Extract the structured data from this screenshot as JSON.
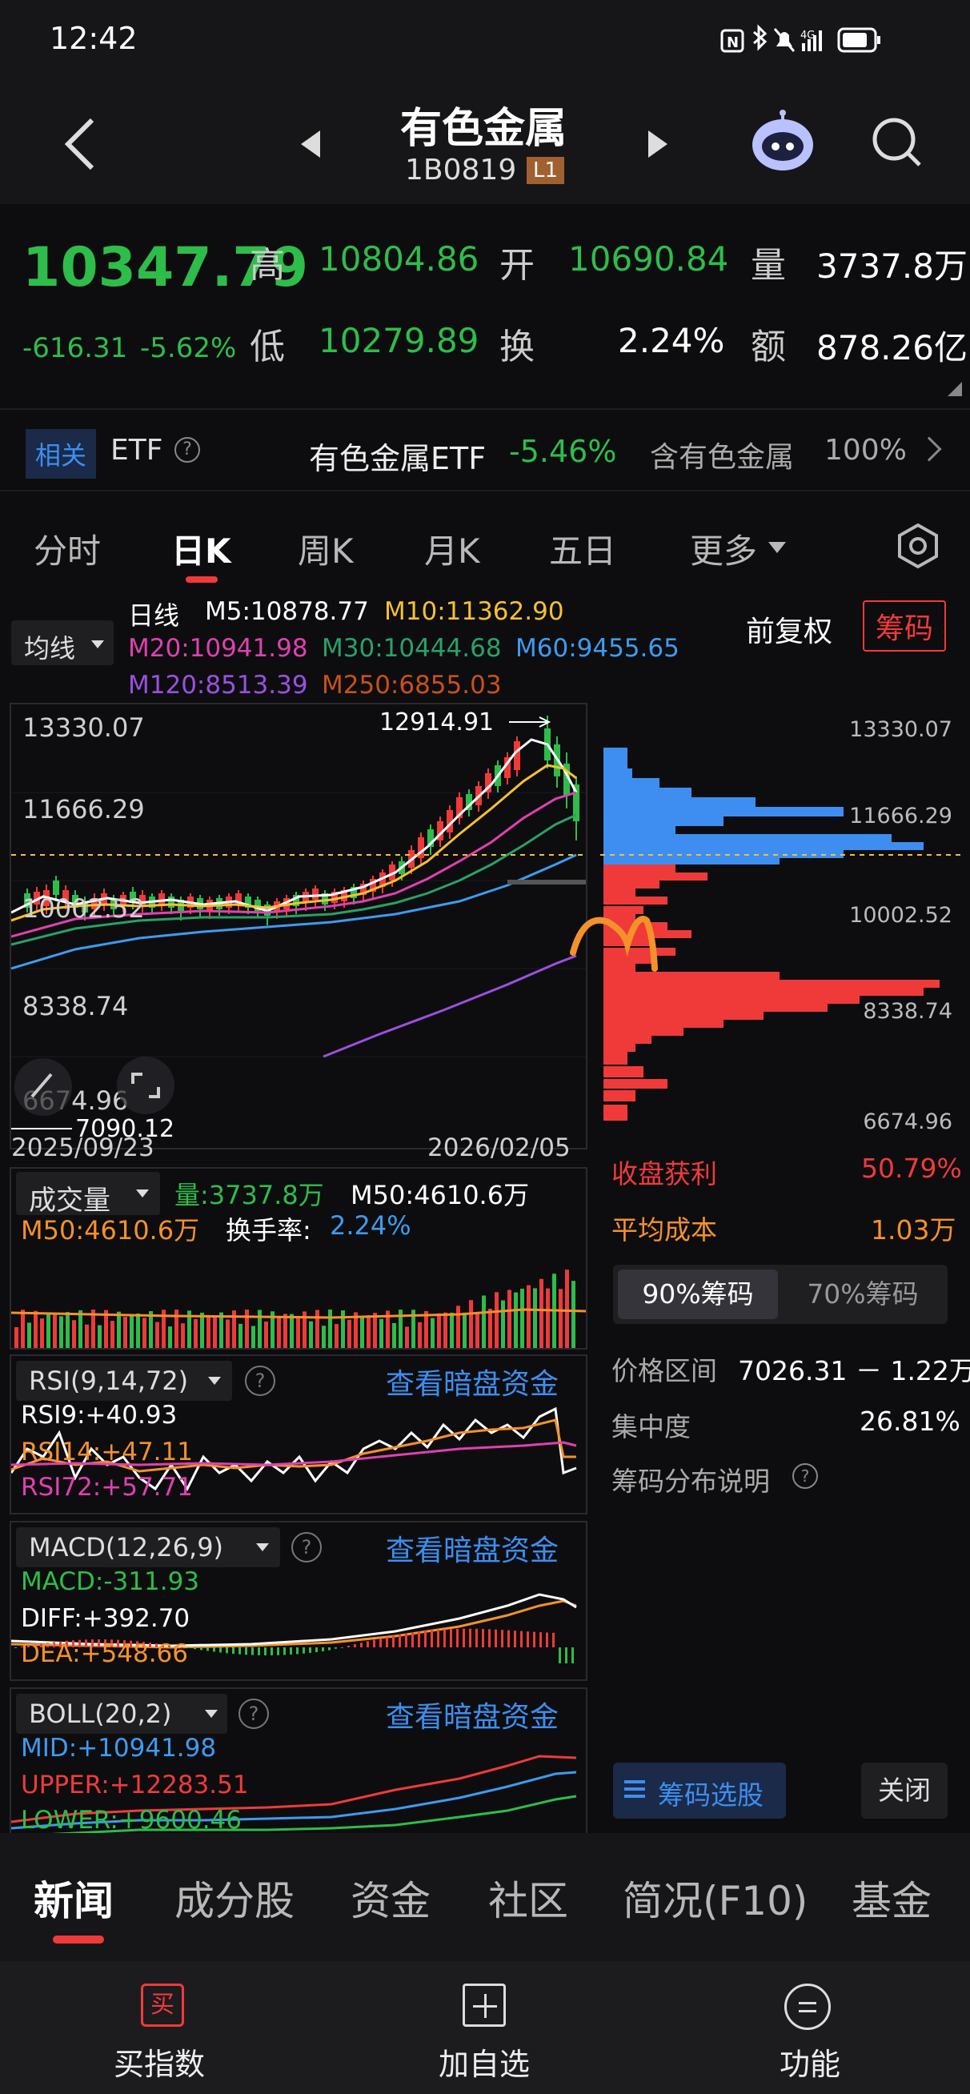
{
  "status": {
    "time": "12:42",
    "network": "4G"
  },
  "header": {
    "title": "有色金属",
    "code": "1B0819",
    "level": "L1"
  },
  "quote": {
    "price": "10347.79",
    "change": "-616.31",
    "change_pct": "-5.62%",
    "high_label": "高",
    "high": "10804.86",
    "open_label": "开",
    "open": "10690.84",
    "volume_label": "量",
    "volume": "3737.8万",
    "low_label": "低",
    "low": "10279.89",
    "turnover_label": "换",
    "turnover": "2.24%",
    "amount_label": "额",
    "amount": "878.26亿"
  },
  "etf": {
    "tag": "相关",
    "label": "ETF",
    "name": "有色金属ETF",
    "pct": "-5.46%",
    "contains": "含有色金属",
    "ratio": "100%"
  },
  "tabs": [
    "分时",
    "日K",
    "周K",
    "月K",
    "五日",
    "更多"
  ],
  "active_tab": "日K",
  "indicators": {
    "selector": "均线",
    "line_label": "日线",
    "m5": "M5:10878.77",
    "m10": "M10:11362.90",
    "m20": "M20:10941.98",
    "m30": "M30:10444.68",
    "m60": "M60:9455.65",
    "m120": "M120:8513.39",
    "m250": "M250:6855.03",
    "adjust": "前复权",
    "chips_btn": "筹码"
  },
  "kline": {
    "y_labels": [
      "13330.07",
      "11666.29",
      "10002.52",
      "8338.74",
      "6674.96"
    ],
    "max_label": "12914.91",
    "min_label": "7090.12",
    "date_start": "2025/09/23",
    "date_end": "2026/02/05"
  },
  "chip_axis": [
    "13330.07",
    "11666.29",
    "10002.52",
    "8338.74",
    "6674.96"
  ],
  "volume_panel": {
    "selector": "成交量",
    "vol": "量:3737.8万",
    "m50a": "M50:4610.6万",
    "m50b": "M50:4610.6万",
    "turnover_label": "换手率:",
    "turnover": "2.24%"
  },
  "rsi": {
    "selector": "RSI(9,14,72)",
    "link": "查看暗盘资金",
    "rsi9": "RSI9:+40.93",
    "rsi14": "RSI14:+47.11",
    "rsi72": "RSI72:+57.71"
  },
  "macd": {
    "selector": "MACD(12,26,9)",
    "link": "查看暗盘资金",
    "macd": "MACD:-311.93",
    "diff": "DIFF:+392.70",
    "dea": "DEA:+548.66"
  },
  "boll": {
    "selector": "BOLL(20,2)",
    "link": "查看暗盘资金",
    "mid": "MID:+10941.98",
    "upper": "UPPER:+12283.51",
    "lower": "LOWER:+9600.46"
  },
  "chip_stats": {
    "profit_label": "收盘获利",
    "profit": "50.79%",
    "cost_label": "平均成本",
    "cost": "1.03万",
    "seg_90": "90%筹码",
    "seg_70": "70%筹码",
    "range_label": "价格区间",
    "range": "7026.31 － 1.22万",
    "conc_label": "集中度",
    "conc": "26.81%",
    "explain": "筹码分布说明",
    "select_btn": "筹码选股",
    "close_btn": "关闭"
  },
  "bottom_tabs": [
    "新闻",
    "成分股",
    "资金",
    "社区",
    "简况(F10)",
    "基金"
  ],
  "footer": {
    "buy": "买指数",
    "buy_icon": "买",
    "add": "加自选",
    "func": "功能"
  },
  "colors": {
    "up": "#f03a3a",
    "down": "#2ebd4a",
    "blue": "#3d8ef0",
    "orange": "#f0a030"
  }
}
